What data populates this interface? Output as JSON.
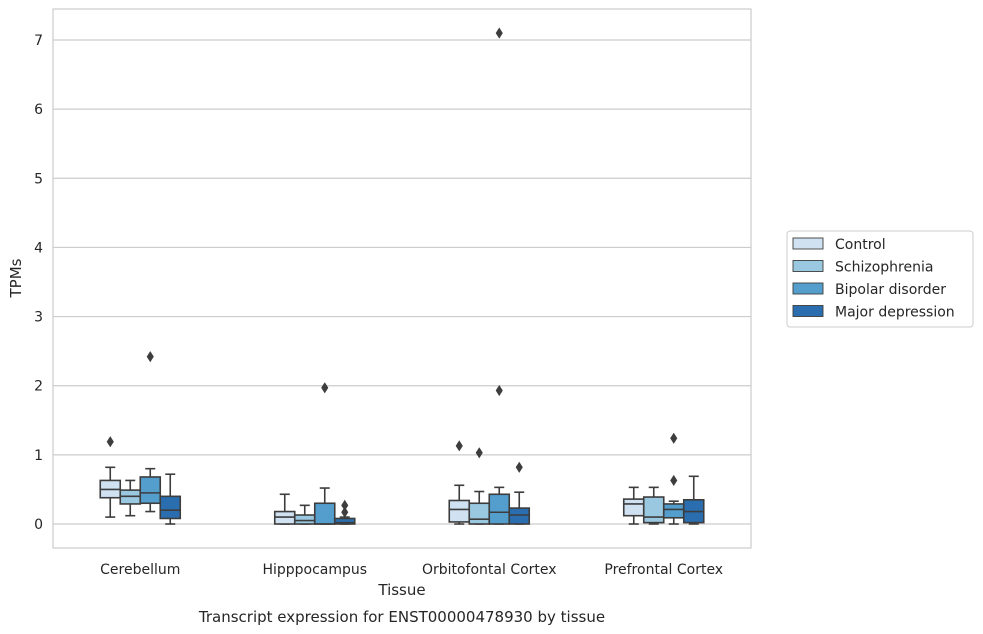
{
  "chart_data": {
    "type": "box",
    "title": "",
    "caption": "Transcript expression for ENST00000478930 by tissue",
    "xlabel": "Tissue",
    "ylabel": "TPMs",
    "ylim": [
      -0.35,
      7.45
    ],
    "yticks": [
      0,
      1,
      2,
      3,
      4,
      5,
      6,
      7
    ],
    "grid": "horizontal",
    "legend_position": "right",
    "categories": [
      "Cerebellum",
      "Hipppocampus",
      "Orbitofontal Cortex",
      "Prefrontal Cortex"
    ],
    "series": [
      {
        "name": "Control",
        "color": "#d0e1f2",
        "boxes": [
          {
            "whislo": 0.1,
            "q1": 0.38,
            "med": 0.5,
            "q3": 0.63,
            "whishi": 0.82,
            "fliers": [
              1.19
            ]
          },
          {
            "whislo": 0.0,
            "q1": 0.0,
            "med": 0.1,
            "q3": 0.18,
            "whishi": 0.43,
            "fliers": []
          },
          {
            "whislo": 0.0,
            "q1": 0.03,
            "med": 0.21,
            "q3": 0.34,
            "whishi": 0.56,
            "fliers": [
              1.13
            ]
          },
          {
            "whislo": 0.0,
            "q1": 0.12,
            "med": 0.29,
            "q3": 0.36,
            "whishi": 0.53,
            "fliers": []
          }
        ]
      },
      {
        "name": "Schizophrenia",
        "color": "#9ac8e0",
        "boxes": [
          {
            "whislo": 0.12,
            "q1": 0.29,
            "med": 0.4,
            "q3": 0.49,
            "whishi": 0.63,
            "fliers": []
          },
          {
            "whislo": 0.0,
            "q1": 0.0,
            "med": 0.05,
            "q3": 0.13,
            "whishi": 0.27,
            "fliers": []
          },
          {
            "whislo": 0.0,
            "q1": 0.0,
            "med": 0.07,
            "q3": 0.3,
            "whishi": 0.47,
            "fliers": [
              1.03
            ]
          },
          {
            "whislo": 0.0,
            "q1": 0.02,
            "med": 0.1,
            "q3": 0.39,
            "whishi": 0.53,
            "fliers": []
          }
        ]
      },
      {
        "name": "Bipolar disorder",
        "color": "#539ecd",
        "boxes": [
          {
            "whislo": 0.18,
            "q1": 0.3,
            "med": 0.45,
            "q3": 0.68,
            "whishi": 0.8,
            "fliers": [
              2.42
            ]
          },
          {
            "whislo": 0.0,
            "q1": 0.0,
            "med": 0.0,
            "q3": 0.3,
            "whishi": 0.52,
            "fliers": [
              1.97
            ]
          },
          {
            "whislo": 0.0,
            "q1": 0.0,
            "med": 0.17,
            "q3": 0.43,
            "whishi": 0.53,
            "fliers": [
              1.93,
              7.1
            ]
          },
          {
            "whislo": 0.0,
            "q1": 0.09,
            "med": 0.21,
            "q3": 0.29,
            "whishi": 0.33,
            "fliers": [
              0.63,
              1.24
            ]
          }
        ]
      },
      {
        "name": "Major depression",
        "color": "#2a6eaf",
        "boxes": [
          {
            "whislo": 0.0,
            "q1": 0.08,
            "med": 0.2,
            "q3": 0.4,
            "whishi": 0.72,
            "fliers": []
          },
          {
            "whislo": 0.0,
            "q1": 0.0,
            "med": 0.02,
            "q3": 0.08,
            "whishi": 0.1,
            "fliers": [
              0.17,
              0.27
            ]
          },
          {
            "whislo": 0.0,
            "q1": 0.0,
            "med": 0.13,
            "q3": 0.23,
            "whishi": 0.46,
            "fliers": [
              0.82
            ]
          },
          {
            "whislo": 0.0,
            "q1": 0.02,
            "med": 0.18,
            "q3": 0.35,
            "whishi": 0.69,
            "fliers": []
          }
        ]
      }
    ]
  }
}
